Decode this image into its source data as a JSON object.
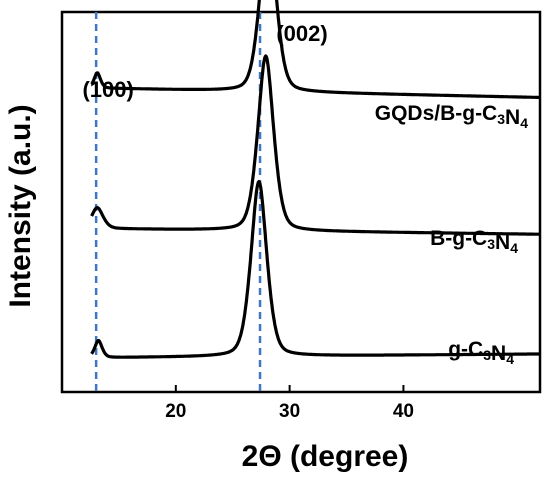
{
  "chart_data": {
    "type": "line",
    "xlabel": "2Θ (degree)",
    "ylabel": "Intensity (a.u.)",
    "xlim": [
      10,
      52
    ],
    "x_ticks": [
      20,
      30,
      40
    ],
    "y_ticks_shown": false,
    "grid": false,
    "reference_lines": [
      {
        "x": 13.0,
        "label": "(100)",
        "color": "#3f78c1",
        "style": "dashed"
      },
      {
        "x": 27.4,
        "label": "(002)",
        "color": "#3f78c1",
        "style": "dashed"
      }
    ],
    "series": [
      {
        "name": "GQDs/B-g-C3N4",
        "label_parts": [
          {
            "t": "GQDs/B-g-C",
            "sub": false
          },
          {
            "t": "3",
            "sub": true
          },
          {
            "t": "N",
            "sub": false
          },
          {
            "t": "4",
            "sub": true
          }
        ],
        "baseline": 0.8,
        "peaks": [
          {
            "center": 13.1,
            "height": 0.04,
            "width": 0.3
          },
          {
            "center": 28.1,
            "height": 0.45,
            "width": 0.75
          }
        ],
        "slope": -0.025
      },
      {
        "name": "B-g-C3N4",
        "label_parts": [
          {
            "t": "B-g-C",
            "sub": false
          },
          {
            "t": "3",
            "sub": true
          },
          {
            "t": "N",
            "sub": false
          },
          {
            "t": "4",
            "sub": true
          }
        ],
        "baseline": 0.43,
        "peaks": [
          {
            "center": 13.1,
            "height": 0.055,
            "width": 0.55
          },
          {
            "center": 27.9,
            "height": 0.46,
            "width": 0.75
          }
        ],
        "slope": -0.015
      },
      {
        "name": "g-C3N4",
        "label_parts": [
          {
            "t": "g-C",
            "sub": false
          },
          {
            "t": "3",
            "sub": true
          },
          {
            "t": "N",
            "sub": false
          },
          {
            "t": "4",
            "sub": true
          }
        ],
        "baseline": 0.09,
        "peaks": [
          {
            "center": 13.2,
            "height": 0.045,
            "width": 0.35
          },
          {
            "center": 27.3,
            "height": 0.46,
            "width": 0.75
          }
        ],
        "slope": 0.01
      }
    ]
  }
}
